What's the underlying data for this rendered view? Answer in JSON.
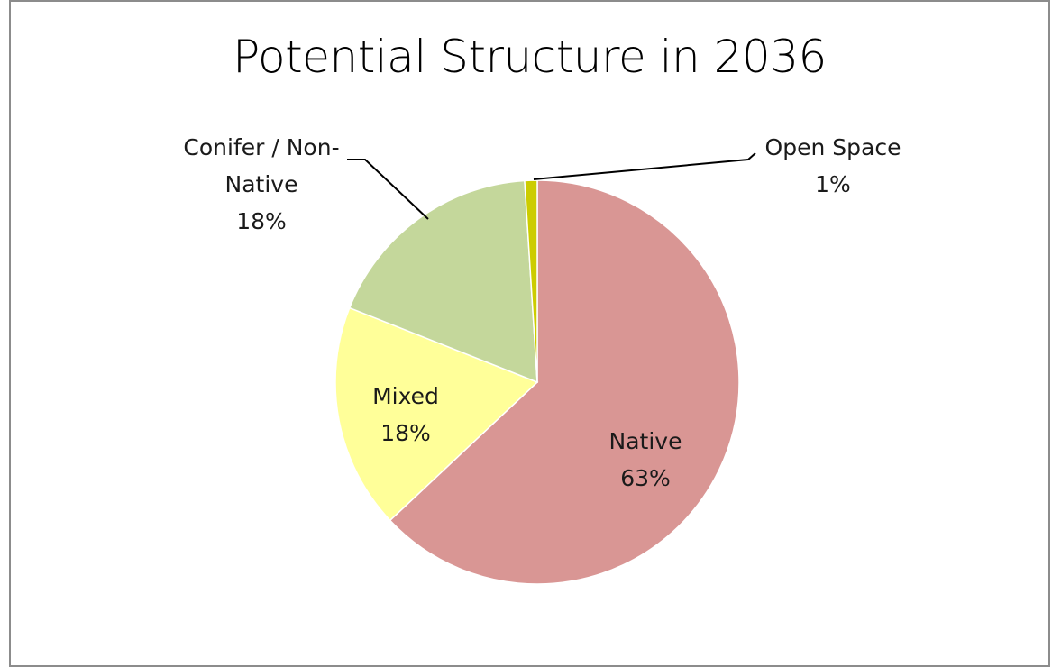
{
  "chart_data": {
    "type": "pie",
    "title": "Potential Structure in 2036",
    "slices": [
      {
        "name": "Native",
        "value": 63,
        "color": "#d99694",
        "label": [
          "Native",
          "63%"
        ]
      },
      {
        "name": "Mixed",
        "value": 18,
        "color": "#ffff99",
        "label": [
          "Mixed",
          "18%"
        ]
      },
      {
        "name": "Conifer / Non-Native",
        "value": 18,
        "color": "#c4d79b",
        "label": [
          "Conifer / Non-",
          "Native",
          "18%"
        ]
      },
      {
        "name": "Open Space",
        "value": 1,
        "color": "#cccc00",
        "label": [
          "Open Space",
          "1%"
        ]
      }
    ]
  }
}
